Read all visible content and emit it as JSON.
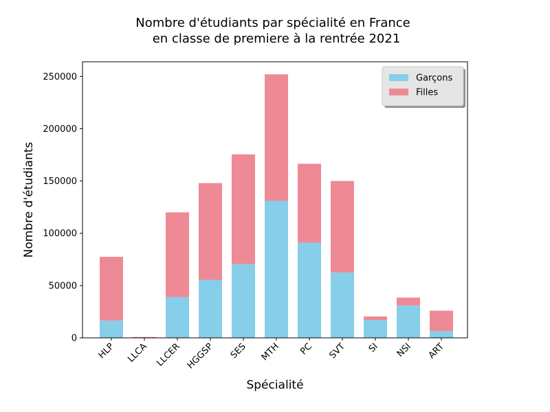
{
  "chart_data": {
    "type": "bar",
    "stacked": true,
    "title_line1": "Nombre d'étudiants par spécialité en France",
    "title_line2": "en classe de premiere à la rentrée 2021",
    "xlabel": "Spécialité",
    "ylabel": "Nombre d'étudiants",
    "categories": [
      "HLP",
      "LLCA",
      "LLCER",
      "HGGSP",
      "SES",
      "MTH",
      "PC",
      "SVT",
      "SI",
      "NSI",
      "ART"
    ],
    "series": [
      {
        "name": "Garçons",
        "color": "#87ceeb",
        "values": [
          16500,
          300,
          39000,
          55500,
          70500,
          131000,
          91000,
          62500,
          17000,
          31000,
          6500
        ]
      },
      {
        "name": "Filles",
        "color": "#ee8a95",
        "values": [
          61000,
          500,
          81000,
          92500,
          105000,
          121000,
          75500,
          87500,
          3500,
          7500,
          19500
        ]
      }
    ],
    "ylim": [
      0,
      264000
    ],
    "yticks": [
      0,
      50000,
      100000,
      150000,
      200000,
      250000
    ],
    "legend_position": "top-right",
    "grid": false
  }
}
